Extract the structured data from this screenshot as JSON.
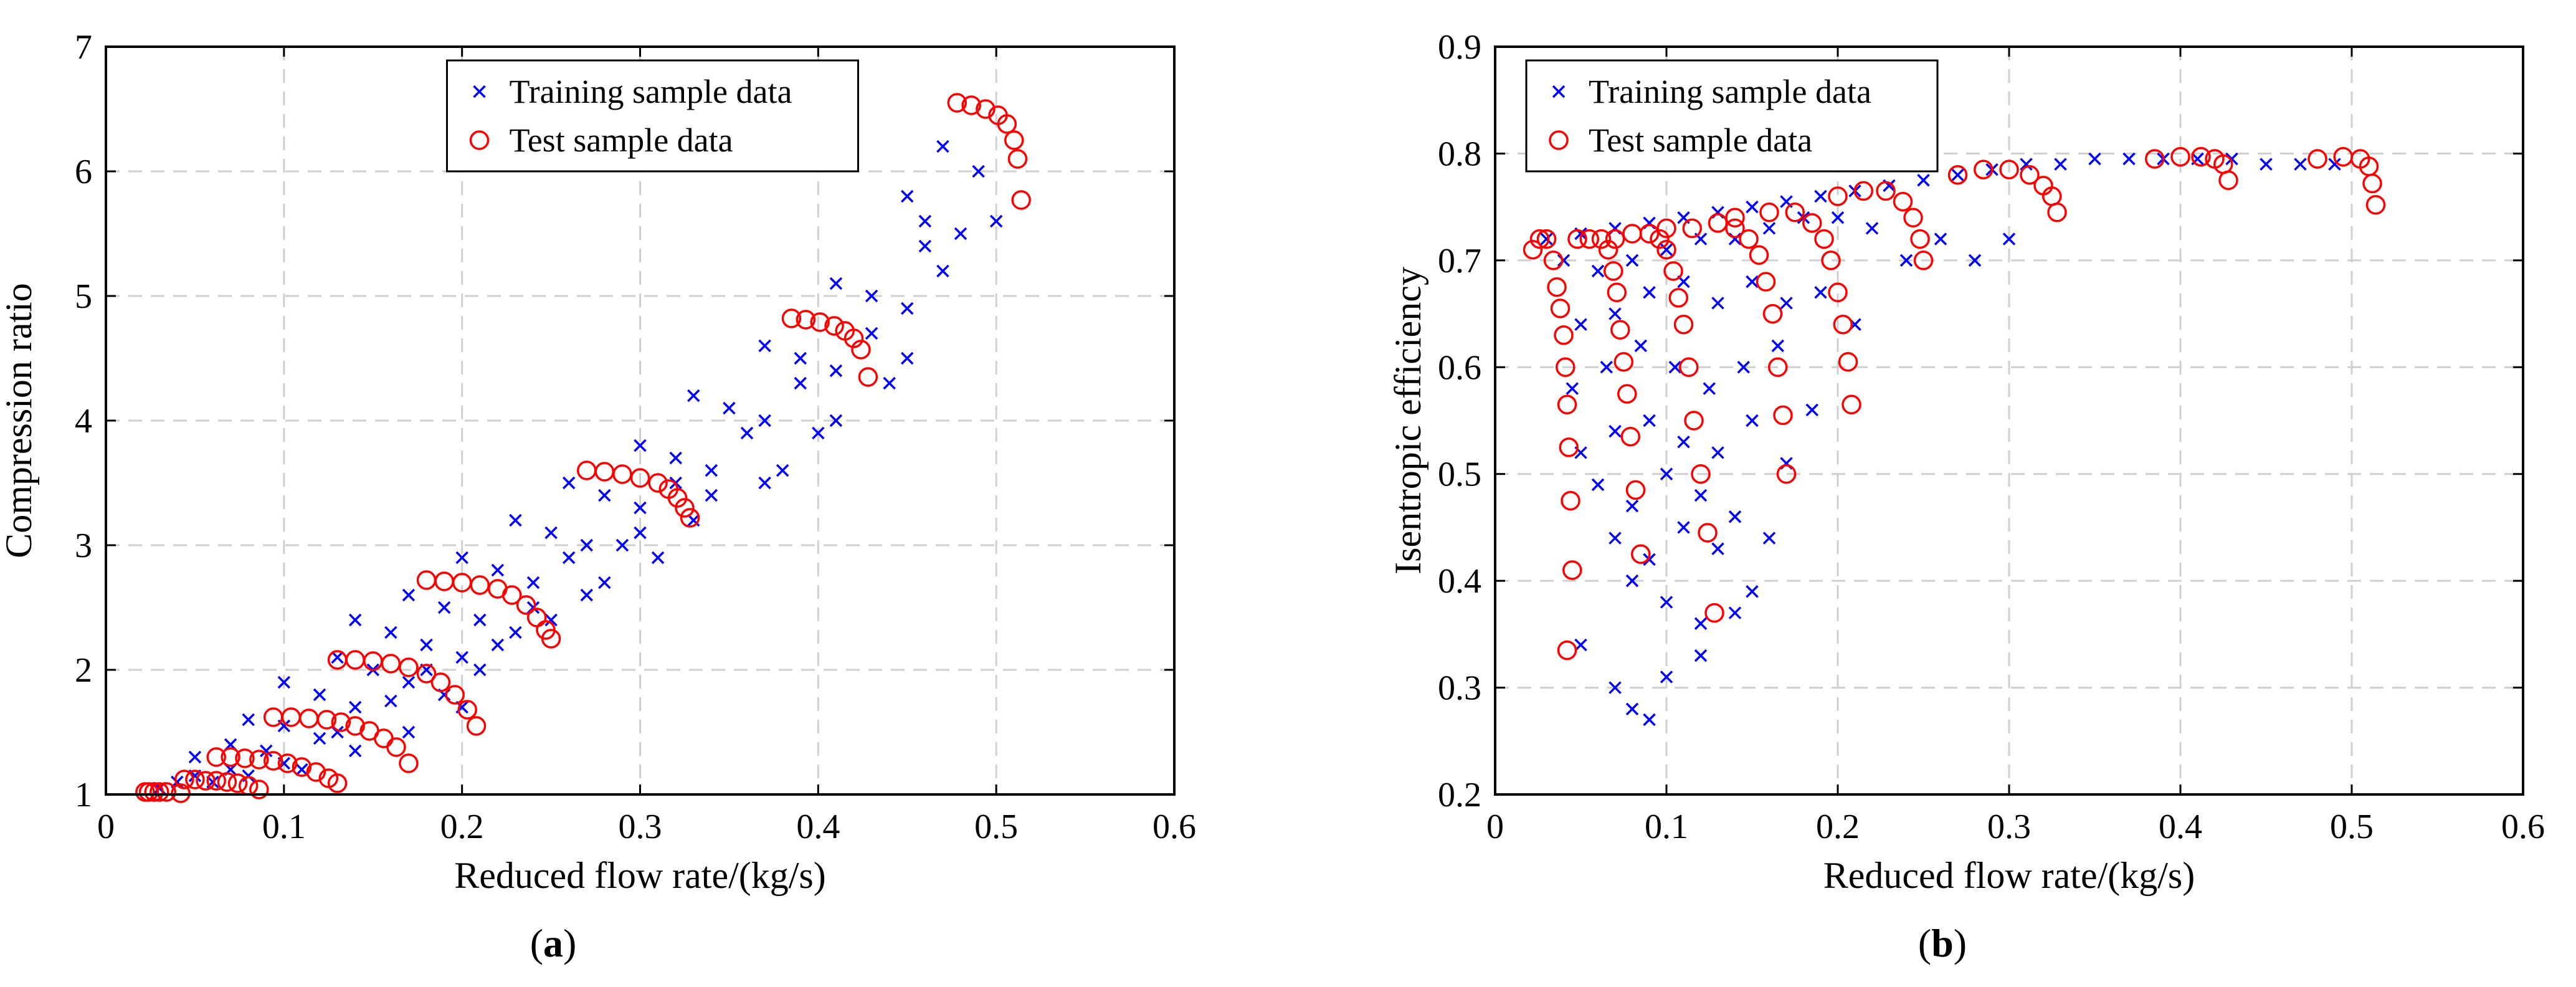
{
  "figure": {
    "panel_a_label": "a",
    "panel_b_label": "b"
  },
  "chart_data": [
    {
      "type": "scatter",
      "title": "",
      "xlabel": "Reduced flow rate/(kg/s)",
      "ylabel": "Compression ratio",
      "xlim": [
        0,
        0.6
      ],
      "ylim": [
        1,
        7
      ],
      "xticks": [
        "0",
        "0.1",
        "0.2",
        "0.3",
        "0.4",
        "0.5",
        "0.6"
      ],
      "yticks": [
        "1",
        "2",
        "3",
        "4",
        "5",
        "6",
        "7"
      ],
      "grid": true,
      "legend": "top-center",
      "colors": {
        "training": "#0000ff",
        "test": "#ff0000"
      },
      "series": [
        {
          "name": "Training sample data",
          "marker": "x",
          "x": [
            0.03,
            0.04,
            0.05,
            0.06,
            0.07,
            0.08,
            0.05,
            0.07,
            0.09,
            0.1,
            0.11,
            0.08,
            0.1,
            0.12,
            0.13,
            0.14,
            0.1,
            0.12,
            0.14,
            0.16,
            0.17,
            0.13,
            0.15,
            0.17,
            0.18,
            0.19,
            0.2,
            0.14,
            0.16,
            0.18,
            0.2,
            0.21,
            0.22,
            0.17,
            0.19,
            0.21,
            0.23,
            0.24,
            0.25,
            0.2,
            0.22,
            0.24,
            0.26,
            0.27,
            0.28,
            0.23,
            0.25,
            0.27,
            0.29,
            0.3,
            0.31,
            0.26,
            0.28,
            0.3,
            0.32,
            0.33,
            0.34,
            0.3,
            0.32,
            0.34,
            0.36,
            0.37,
            0.38,
            0.33,
            0.35,
            0.37,
            0.39,
            0.4,
            0.41,
            0.37,
            0.39,
            0.41,
            0.43,
            0.44,
            0.45,
            0.41,
            0.43,
            0.45,
            0.46,
            0.47,
            0.48,
            0.45,
            0.46,
            0.47,
            0.49,
            0.5
          ],
          "y": [
            1.05,
            1.1,
            1.15,
            1.1,
            1.2,
            1.15,
            1.3,
            1.4,
            1.35,
            1.25,
            1.2,
            1.6,
            1.55,
            1.45,
            1.5,
            1.35,
            1.9,
            1.8,
            1.7,
            1.75,
            1.5,
            2.1,
            2.0,
            1.9,
            2.0,
            1.8,
            1.7,
            2.4,
            2.3,
            2.2,
            2.1,
            2.0,
            2.2,
            2.6,
            2.5,
            2.4,
            2.3,
            2.5,
            2.4,
            2.9,
            2.8,
            2.7,
            2.9,
            2.6,
            2.7,
            3.2,
            3.1,
            3.0,
            3.0,
            3.1,
            2.9,
            3.5,
            3.4,
            3.3,
            3.5,
            3.2,
            3.4,
            3.8,
            3.7,
            3.6,
            3.9,
            3.5,
            3.6,
            4.2,
            4.1,
            4.0,
            4.3,
            3.9,
            4.0,
            4.6,
            4.5,
            4.4,
            4.7,
            4.3,
            4.5,
            5.1,
            5.0,
            4.9,
            5.4,
            5.2,
            5.5,
            5.8,
            5.6,
            6.2,
            6.0,
            5.6
          ]
        },
        {
          "name": "Test sample data",
          "marker": "o",
          "x": [
            0.022,
            0.024,
            0.027,
            0.03,
            0.034,
            0.042,
            0.044,
            0.05,
            0.056,
            0.062,
            0.068,
            0.074,
            0.08,
            0.086,
            0.062,
            0.07,
            0.078,
            0.086,
            0.094,
            0.102,
            0.11,
            0.118,
            0.125,
            0.13,
            0.094,
            0.104,
            0.114,
            0.124,
            0.132,
            0.14,
            0.148,
            0.156,
            0.163,
            0.17,
            0.13,
            0.14,
            0.15,
            0.16,
            0.17,
            0.18,
            0.188,
            0.196,
            0.203,
            0.208,
            0.18,
            0.19,
            0.2,
            0.21,
            0.22,
            0.228,
            0.236,
            0.242,
            0.247,
            0.25,
            0.27,
            0.28,
            0.29,
            0.3,
            0.31,
            0.316,
            0.321,
            0.325,
            0.328,
            0.385,
            0.393,
            0.401,
            0.409,
            0.415,
            0.42,
            0.424,
            0.428,
            0.478,
            0.486,
            0.494,
            0.501,
            0.506,
            0.51,
            0.512,
            0.514
          ],
          "y": [
            1.02,
            1.02,
            1.02,
            1.02,
            1.02,
            1.01,
            1.12,
            1.12,
            1.11,
            1.11,
            1.1,
            1.09,
            1.07,
            1.04,
            1.3,
            1.3,
            1.29,
            1.28,
            1.27,
            1.25,
            1.22,
            1.18,
            1.13,
            1.09,
            1.62,
            1.62,
            1.61,
            1.6,
            1.58,
            1.55,
            1.51,
            1.45,
            1.38,
            1.25,
            2.08,
            2.08,
            2.07,
            2.05,
            2.02,
            1.97,
            1.9,
            1.8,
            1.68,
            1.55,
            2.72,
            2.71,
            2.7,
            2.68,
            2.65,
            2.6,
            2.52,
            2.42,
            2.32,
            2.25,
            3.6,
            3.59,
            3.57,
            3.54,
            3.5,
            3.45,
            3.38,
            3.3,
            3.22,
            4.82,
            4.81,
            4.79,
            4.76,
            4.72,
            4.66,
            4.57,
            4.35,
            6.55,
            6.53,
            6.5,
            6.45,
            6.38,
            6.25,
            6.1,
            5.77
          ]
        }
      ]
    },
    {
      "type": "scatter",
      "title": "",
      "xlabel": "Reduced flow rate/(kg/s)",
      "ylabel": "Isentropic efficiency",
      "xlim": [
        0,
        0.6
      ],
      "ylim": [
        0.2,
        0.9
      ],
      "xticks": [
        "0",
        "0.1",
        "0.2",
        "0.3",
        "0.4",
        "0.5",
        "0.6"
      ],
      "yticks": [
        "0.2",
        "0.3",
        "0.4",
        "0.5",
        "0.6",
        "0.7",
        "0.8",
        "0.9"
      ],
      "grid": true,
      "legend": "top-left",
      "colors": {
        "training": "#0000ff",
        "test": "#ff0000"
      },
      "series": [
        {
          "name": "Training sample data",
          "marker": "x",
          "x": [
            0.03,
            0.05,
            0.07,
            0.09,
            0.11,
            0.13,
            0.15,
            0.17,
            0.19,
            0.21,
            0.23,
            0.25,
            0.27,
            0.29,
            0.31,
            0.33,
            0.35,
            0.37,
            0.39,
            0.41,
            0.43,
            0.45,
            0.47,
            0.49,
            0.04,
            0.06,
            0.08,
            0.1,
            0.12,
            0.14,
            0.16,
            0.18,
            0.2,
            0.22,
            0.24,
            0.26,
            0.28,
            0.3,
            0.05,
            0.07,
            0.09,
            0.11,
            0.13,
            0.15,
            0.17,
            0.19,
            0.21,
            0.045,
            0.065,
            0.085,
            0.105,
            0.125,
            0.145,
            0.165,
            0.185,
            0.05,
            0.07,
            0.09,
            0.11,
            0.13,
            0.15,
            0.17,
            0.06,
            0.08,
            0.1,
            0.12,
            0.14,
            0.16,
            0.07,
            0.09,
            0.11,
            0.13,
            0.15,
            0.08,
            0.1,
            0.12,
            0.14,
            0.05,
            0.08,
            0.1,
            0.12,
            0.07,
            0.09
          ],
          "y": [
            0.72,
            0.725,
            0.73,
            0.735,
            0.74,
            0.745,
            0.75,
            0.755,
            0.76,
            0.765,
            0.77,
            0.775,
            0.78,
            0.785,
            0.79,
            0.79,
            0.795,
            0.795,
            0.795,
            0.795,
            0.795,
            0.79,
            0.79,
            0.79,
            0.7,
            0.69,
            0.7,
            0.71,
            0.72,
            0.72,
            0.73,
            0.74,
            0.74,
            0.73,
            0.7,
            0.72,
            0.7,
            0.72,
            0.64,
            0.65,
            0.67,
            0.68,
            0.66,
            0.68,
            0.66,
            0.67,
            0.64,
            0.58,
            0.6,
            0.62,
            0.6,
            0.58,
            0.6,
            0.62,
            0.56,
            0.52,
            0.54,
            0.55,
            0.53,
            0.52,
            0.55,
            0.51,
            0.49,
            0.47,
            0.5,
            0.48,
            0.46,
            0.44,
            0.44,
            0.42,
            0.45,
            0.43,
            0.39,
            0.4,
            0.38,
            0.36,
            0.37,
            0.34,
            0.28,
            0.31,
            0.33,
            0.3,
            0.27
          ]
        },
        {
          "name": "Test sample data",
          "marker": "o",
          "x": [
            0.022,
            0.026,
            0.03,
            0.034,
            0.036,
            0.038,
            0.04,
            0.041,
            0.042,
            0.043,
            0.044,
            0.045,
            0.042,
            0.048,
            0.055,
            0.062,
            0.066,
            0.069,
            0.071,
            0.073,
            0.075,
            0.077,
            0.079,
            0.082,
            0.085,
            0.07,
            0.08,
            0.09,
            0.096,
            0.1,
            0.104,
            0.107,
            0.11,
            0.113,
            0.116,
            0.12,
            0.124,
            0.128,
            0.1,
            0.115,
            0.13,
            0.14,
            0.148,
            0.154,
            0.158,
            0.162,
            0.165,
            0.168,
            0.17,
            0.14,
            0.16,
            0.175,
            0.185,
            0.192,
            0.196,
            0.2,
            0.203,
            0.206,
            0.208,
            0.2,
            0.215,
            0.228,
            0.238,
            0.244,
            0.248,
            0.25,
            0.27,
            0.285,
            0.3,
            0.312,
            0.32,
            0.325,
            0.328,
            0.385,
            0.4,
            0.412,
            0.42,
            0.425,
            0.428,
            0.48,
            0.495,
            0.505,
            0.51,
            0.512,
            0.514
          ],
          "y": [
            0.71,
            0.72,
            0.72,
            0.7,
            0.675,
            0.655,
            0.63,
            0.6,
            0.565,
            0.525,
            0.475,
            0.41,
            0.335,
            0.72,
            0.72,
            0.72,
            0.71,
            0.69,
            0.67,
            0.635,
            0.605,
            0.575,
            0.535,
            0.485,
            0.425,
            0.72,
            0.725,
            0.725,
            0.72,
            0.71,
            0.69,
            0.665,
            0.64,
            0.6,
            0.55,
            0.5,
            0.445,
            0.37,
            0.73,
            0.73,
            0.735,
            0.73,
            0.72,
            0.705,
            0.68,
            0.65,
            0.6,
            0.555,
            0.5,
            0.74,
            0.745,
            0.745,
            0.735,
            0.72,
            0.7,
            0.67,
            0.64,
            0.605,
            0.565,
            0.76,
            0.765,
            0.765,
            0.755,
            0.74,
            0.72,
            0.7,
            0.78,
            0.785,
            0.785,
            0.78,
            0.77,
            0.76,
            0.745,
            0.795,
            0.797,
            0.797,
            0.795,
            0.79,
            0.775,
            0.795,
            0.797,
            0.795,
            0.788,
            0.772,
            0.752
          ]
        }
      ]
    }
  ]
}
